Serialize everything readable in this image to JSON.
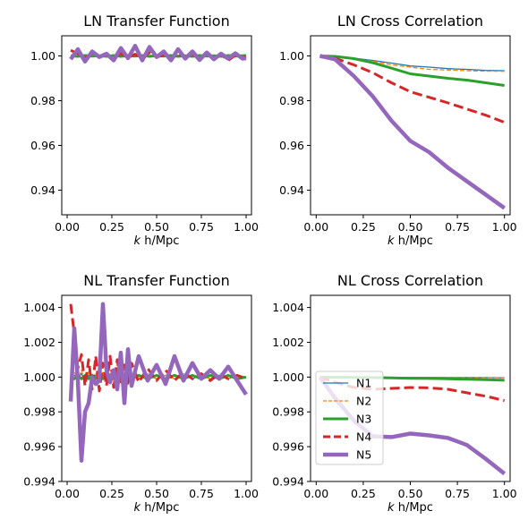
{
  "figure": {
    "xlabel_italic": "k",
    "xlabel_unit": " h/Mpc"
  },
  "series_styles": [
    {
      "name": "N1",
      "color": "#1f77b4",
      "dash": "solid",
      "width": 1.3
    },
    {
      "name": "N2",
      "color": "#ff7f0e",
      "dash": "dashed",
      "width": 1.3
    },
    {
      "name": "N3",
      "color": "#2ca02c",
      "dash": "solid",
      "width": 3
    },
    {
      "name": "N4",
      "color": "#d62728",
      "dash": "dashed",
      "width": 3
    },
    {
      "name": "N5",
      "color": "#9467bd",
      "dash": "solid",
      "width": 4.5
    }
  ],
  "chart_data": [
    {
      "type": "line",
      "title": "LN Transfer Function",
      "xlim": [
        -0.03,
        1.03
      ],
      "ylim": [
        0.929,
        1.009
      ],
      "xticks": [
        "0.00",
        "0.25",
        "0.50",
        "0.75",
        "1.00"
      ],
      "yticks": [
        "0.94",
        "0.96",
        "0.98",
        "1.00"
      ],
      "legend": false,
      "x": [
        0.02,
        0.06,
        0.1,
        0.14,
        0.18,
        0.22,
        0.26,
        0.3,
        0.34,
        0.38,
        0.42,
        0.46,
        0.5,
        0.54,
        0.58,
        0.62,
        0.66,
        0.7,
        0.74,
        0.78,
        0.82,
        0.86,
        0.9,
        0.94,
        0.98,
        1.0
      ],
      "series": [
        {
          "name": "N1",
          "values": [
            1.0,
            1.0002,
            0.9998,
            1.0001,
            0.9999,
            1.0001,
            0.9999,
            1.0002,
            0.9998,
            1.0001,
            0.9999,
            1.0001,
            0.9999,
            1.0001,
            0.9999,
            1.0001,
            0.9999,
            1.0001,
            0.9999,
            1.0001,
            0.9999,
            1.0001,
            0.9999,
            1.0001,
            0.9999,
            1.0
          ]
        },
        {
          "name": "N2",
          "values": [
            1.0003,
            1.0004,
            0.9997,
            1.0005,
            0.9996,
            1.0003,
            0.9998,
            1.0004,
            0.9997,
            1.0002,
            0.9998,
            1.0004,
            0.9997,
            1.0003,
            0.9996,
            1.0004,
            0.9998,
            1.0003,
            0.9997,
            1.0008,
            0.9998,
            1.0003,
            0.9997,
            1.0004,
            0.9998,
            1.0
          ]
        },
        {
          "name": "N3",
          "values": [
            1.0,
            0.9998,
            1.0002,
            0.9999,
            1.0001,
            0.9998,
            1.0002,
            0.9998,
            1.0001,
            0.9999,
            1.0002,
            0.9998,
            1.0001,
            0.9999,
            1.0002,
            0.9998,
            1.0001,
            0.9998,
            1.0002,
            0.9999,
            1.0001,
            0.9998,
            1.0002,
            0.9999,
            1.0001,
            1.0002
          ]
        },
        {
          "name": "N4",
          "values": [
            1.0025,
            1.001,
            0.999,
            1.0015,
            0.9995,
            1.0005,
            0.998,
            1.0012,
            0.9992,
            1.0008,
            0.999,
            1.0015,
            0.9995,
            1.0003,
            0.9985,
            1.001,
            0.9992,
            1.0006,
            0.9988,
            1.0012,
            0.9992,
            1.0005,
            0.998,
            1.0003,
            0.999,
            0.9998
          ]
        },
        {
          "name": "N5",
          "values": [
            0.9985,
            1.003,
            0.9975,
            1.002,
            0.9995,
            1.001,
            0.998,
            1.0035,
            0.999,
            1.0045,
            0.998,
            1.004,
            0.9995,
            1.002,
            0.998,
            1.003,
            0.9988,
            1.002,
            0.9982,
            1.0015,
            0.9985,
            1.001,
            0.9988,
            1.0012,
            0.9988,
            0.999
          ]
        }
      ]
    },
    {
      "type": "line",
      "title": "LN Cross Correlation",
      "xlim": [
        -0.03,
        1.03
      ],
      "ylim": [
        0.929,
        1.009
      ],
      "xticks": [
        "0.00",
        "0.25",
        "0.50",
        "0.75",
        "1.00"
      ],
      "yticks": [
        "0.94",
        "0.96",
        "0.98",
        "1.00"
      ],
      "legend": false,
      "x": [
        0.02,
        0.1,
        0.2,
        0.3,
        0.4,
        0.5,
        0.6,
        0.7,
        0.8,
        0.9,
        1.0
      ],
      "series": [
        {
          "name": "N1",
          "values": [
            1.0,
            0.9998,
            0.999,
            0.998,
            0.9968,
            0.9955,
            0.995,
            0.9943,
            0.994,
            0.9935,
            0.9934
          ]
        },
        {
          "name": "N2",
          "values": [
            1.0,
            0.9998,
            0.9988,
            0.9977,
            0.996,
            0.995,
            0.994,
            0.9937,
            0.9934,
            0.9932,
            0.9931
          ]
        },
        {
          "name": "N3",
          "values": [
            1.0,
            0.9998,
            0.9988,
            0.997,
            0.9945,
            0.992,
            0.991,
            0.99,
            0.9892,
            0.988,
            0.9868
          ]
        },
        {
          "name": "N4",
          "values": [
            1.0,
            0.999,
            0.996,
            0.9925,
            0.988,
            0.984,
            0.9815,
            0.979,
            0.9763,
            0.9735,
            0.9703
          ]
        },
        {
          "name": "N5",
          "values": [
            1.0,
            0.9985,
            0.991,
            0.982,
            0.971,
            0.962,
            0.957,
            0.95,
            0.944,
            0.938,
            0.932
          ]
        }
      ]
    },
    {
      "type": "line",
      "title": "NL Transfer Function",
      "xlim": [
        -0.03,
        1.03
      ],
      "ylim": [
        0.994,
        1.0047
      ],
      "xticks": [
        "0.00",
        "0.25",
        "0.50",
        "0.75",
        "1.00"
      ],
      "yticks": [
        "0.994",
        "0.996",
        "0.998",
        "1.000",
        "1.002",
        "1.004"
      ],
      "legend": false,
      "x": [
        0.02,
        0.04,
        0.06,
        0.08,
        0.1,
        0.12,
        0.14,
        0.16,
        0.18,
        0.2,
        0.22,
        0.24,
        0.26,
        0.28,
        0.3,
        0.32,
        0.34,
        0.36,
        0.4,
        0.45,
        0.5,
        0.55,
        0.6,
        0.65,
        0.7,
        0.75,
        0.8,
        0.85,
        0.9,
        0.95,
        1.0
      ],
      "series": [
        {
          "name": "N1",
          "values": [
            1.0,
            1.0001,
            0.9999,
            1.0002,
            0.9998,
            1.0001,
            0.9999,
            1.0001,
            0.9999,
            1.0001,
            0.9999,
            1.0001,
            0.9999,
            1.0001,
            0.9999,
            1.0001,
            0.9999,
            1.0001,
            0.9999,
            1.0001,
            0.9999,
            1.0001,
            0.9999,
            1.0001,
            0.9999,
            1.0001,
            0.9999,
            1.0001,
            0.9999,
            1.0001,
            1.0
          ]
        },
        {
          "name": "N2",
          "values": [
            1.0,
            1.0003,
            0.9998,
            1.0004,
            0.9997,
            1.0003,
            0.9998,
            1.0002,
            0.9998,
            1.0003,
            0.9998,
            1.0002,
            0.9998,
            1.0003,
            0.9999,
            1.0002,
            0.9998,
            1.0002,
            0.9999,
            1.0002,
            0.9999,
            1.0001,
            0.9999,
            1.0002,
            0.9999,
            1.0001,
            0.9999,
            1.0001,
            0.9999,
            1.0001,
            1.0
          ]
        },
        {
          "name": "N3",
          "values": [
            1.0,
            0.9999,
            1.0001,
            0.9999,
            1.0001,
            0.9999,
            1.0001,
            0.9999,
            1.0001,
            0.9999,
            1.0001,
            0.9999,
            1.0001,
            0.9999,
            1.0001,
            0.9999,
            1.0001,
            0.9999,
            1.0001,
            0.9999,
            1.0001,
            0.9999,
            1.0001,
            0.9999,
            1.0001,
            0.9999,
            1.0001,
            0.9999,
            1.0001,
            0.9999,
            1.0
          ]
        },
        {
          "name": "N4",
          "values": [
            1.0042,
            1.0025,
            1.0005,
            1.0013,
            0.9995,
            1.001,
            0.9993,
            1.0012,
            0.9992,
            1.0008,
            0.9995,
            1.0012,
            0.9994,
            1.001,
            0.9996,
            1.0007,
            0.9995,
            1.0008,
            0.9997,
            1.0005,
            0.9998,
            1.0004,
            0.9998,
            1.0003,
            0.9999,
            1.0002,
            0.9998,
            1.0002,
            0.9999,
            1.0001,
            0.9999
          ]
        },
        {
          "name": "N5",
          "values": [
            0.9986,
            1.0028,
            0.9998,
            0.9952,
            0.998,
            0.9985,
            1.0,
            0.9996,
            0.9998,
            1.0042,
            1.0004,
            0.9997,
            1.0004,
            0.9993,
            1.0014,
            0.9985,
            1.0016,
            0.9995,
            1.0012,
            0.9998,
            1.0007,
            0.9996,
            1.0012,
            0.9998,
            1.0008,
            0.9999,
            1.0004,
            0.9999,
            1.0006,
            0.9998,
            0.999
          ]
        }
      ]
    },
    {
      "type": "line",
      "title": "NL Cross Correlation",
      "xlim": [
        -0.03,
        1.03
      ],
      "ylim": [
        0.994,
        1.0047
      ],
      "xticks": [
        "0.00",
        "0.25",
        "0.50",
        "0.75",
        "1.00"
      ],
      "yticks": [
        "0.994",
        "0.996",
        "0.998",
        "1.000",
        "1.002",
        "1.004"
      ],
      "legend": true,
      "legend_position": "lower-left",
      "x": [
        0.02,
        0.1,
        0.2,
        0.3,
        0.4,
        0.5,
        0.6,
        0.7,
        0.8,
        0.9,
        1.0
      ],
      "series": [
        {
          "name": "N1",
          "values": [
            1.0,
            1.0,
            0.99999,
            0.99999,
            0.99998,
            0.99998,
            0.99998,
            0.99997,
            0.99997,
            0.99997,
            0.99996
          ]
        },
        {
          "name": "N2",
          "values": [
            1.0,
            1.0,
            0.99999,
            0.99999,
            0.99999,
            0.99999,
            0.99998,
            0.99998,
            0.99998,
            0.99997,
            0.99997
          ]
        },
        {
          "name": "N3",
          "values": [
            1.0,
            0.99999,
            0.99998,
            0.99997,
            0.99995,
            0.99993,
            0.99992,
            0.9999,
            0.99988,
            0.99985,
            0.99982
          ]
        },
        {
          "name": "N4",
          "values": [
            1.0,
            0.9997,
            0.9994,
            0.9993,
            0.99935,
            0.9994,
            0.99938,
            0.9993,
            0.9991,
            0.9989,
            0.99865
          ]
        },
        {
          "name": "N5",
          "values": [
            1.0,
            0.9988,
            0.9975,
            0.9966,
            0.99655,
            0.99675,
            0.99665,
            0.9965,
            0.9961,
            0.9953,
            0.99445
          ]
        }
      ]
    }
  ]
}
